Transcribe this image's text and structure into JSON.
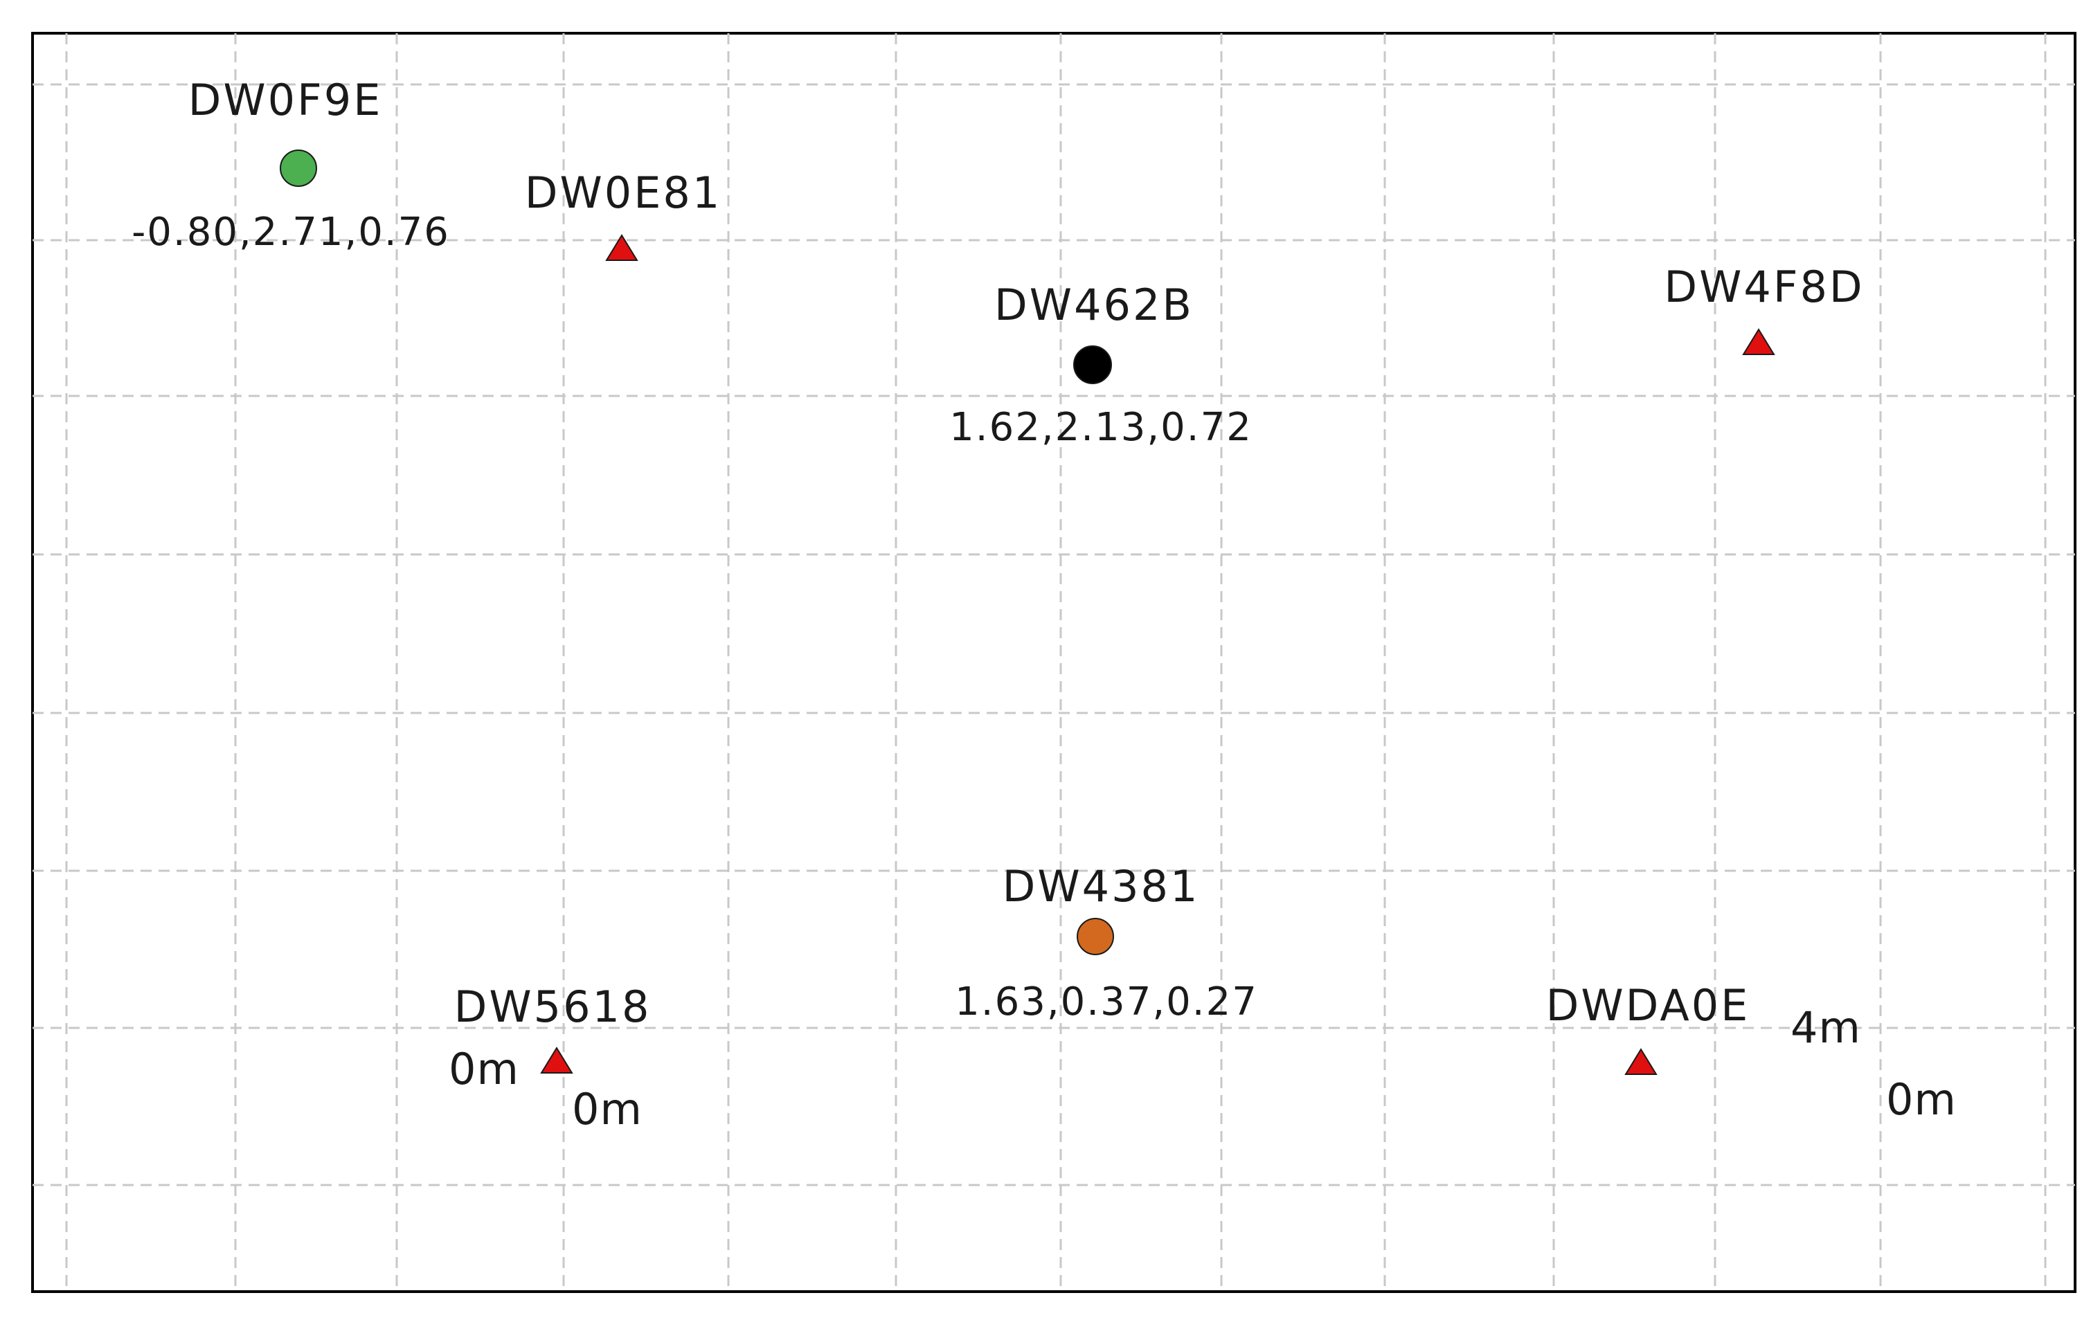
{
  "anchors": [
    {
      "name": "DW0E81",
      "color": "#e01010"
    },
    {
      "name": "DW4F8D",
      "color": "#e01010"
    },
    {
      "name": "DW5618",
      "color": "#e01010"
    },
    {
      "name": "DWDA0E",
      "color": "#e01010"
    }
  ],
  "tags": [
    {
      "name": "DW0F9E",
      "color": "#4caf50",
      "position": "-0.80,2.71,0.76"
    },
    {
      "name": "DW462B",
      "color": "#000000",
      "position": "1.62,2.13,0.72"
    },
    {
      "name": "DW4381",
      "color": "#d2691e",
      "position": "1.63,0.37,0.27"
    }
  ],
  "distance_labels": {
    "dw5618_left": "0m",
    "dw5618_below": "0m",
    "dwda0e_upper": "4m",
    "dwda0e_lower": "0m"
  },
  "colors": {
    "grid": "#c8c8c8",
    "frame": "#000000",
    "background": "#ffffff"
  }
}
